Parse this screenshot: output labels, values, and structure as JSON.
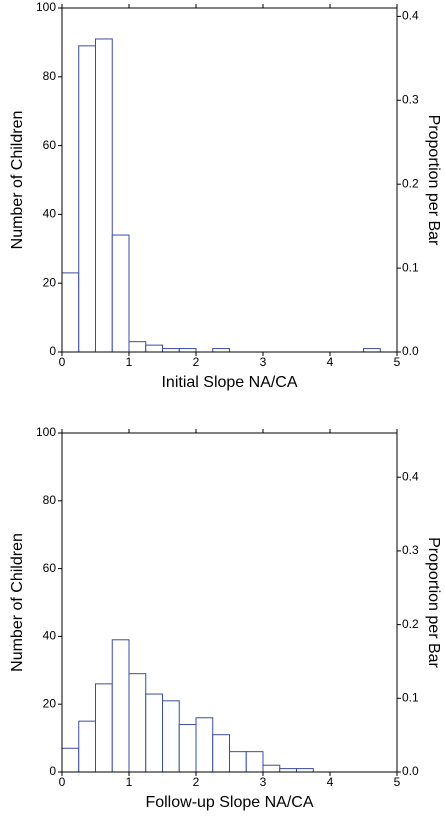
{
  "chart_data": [
    {
      "type": "histogram",
      "xlabel": "Initial Slope NA/CA",
      "ylabel": "Number of Children",
      "y2label": "Proportion per Bar",
      "bins": [
        0,
        0.25,
        0.5,
        0.75,
        1,
        1.25,
        1.5,
        1.75,
        2,
        2.25,
        2.5,
        2.75,
        3,
        3.25,
        3.5,
        3.75,
        4,
        4.25,
        4.5,
        4.75,
        5
      ],
      "values": [
        23,
        89,
        91,
        34,
        3,
        2,
        1,
        1,
        0,
        1,
        0,
        0,
        0,
        0,
        0,
        0,
        0,
        0,
        1,
        0
      ],
      "color": "#3b4ca3",
      "xlim": [
        0,
        5
      ],
      "xticks": [
        0,
        1,
        2,
        3,
        4,
        5
      ],
      "ylim": [
        0,
        100
      ],
      "yticks": [
        0,
        20,
        40,
        60,
        80,
        100
      ],
      "y2lim": [
        0,
        0.41
      ],
      "y2ticks": [
        {
          "value": 0,
          "label": "0.0"
        },
        0.1,
        0.2,
        0.3,
        0.4
      ]
    },
    {
      "type": "histogram",
      "xlabel": "Follow-up Slope NA/CA",
      "ylabel": "Number of Children",
      "y2label": "Proportion per Bar",
      "bins": [
        0,
        0.25,
        0.5,
        0.75,
        1,
        1.25,
        1.5,
        1.75,
        2,
        2.25,
        2.5,
        2.75,
        3,
        3.25,
        3.5,
        3.75,
        4,
        4.25,
        4.5,
        4.75,
        5
      ],
      "values": [
        7,
        15,
        26,
        39,
        29,
        23,
        21,
        14,
        16,
        11,
        6,
        6,
        2,
        1,
        1,
        0,
        0,
        0,
        0,
        0
      ],
      "color": "#3b4ca3",
      "xlim": [
        0,
        5
      ],
      "xticks": [
        0,
        1,
        2,
        3,
        4,
        5
      ],
      "ylim": [
        0,
        100
      ],
      "yticks": [
        0,
        20,
        40,
        60,
        80,
        100
      ],
      "y2lim": [
        0,
        0.46
      ],
      "y2ticks": [
        {
          "value": 0,
          "label": "0.0"
        },
        0.1,
        0.2,
        0.3,
        0.4
      ]
    }
  ]
}
